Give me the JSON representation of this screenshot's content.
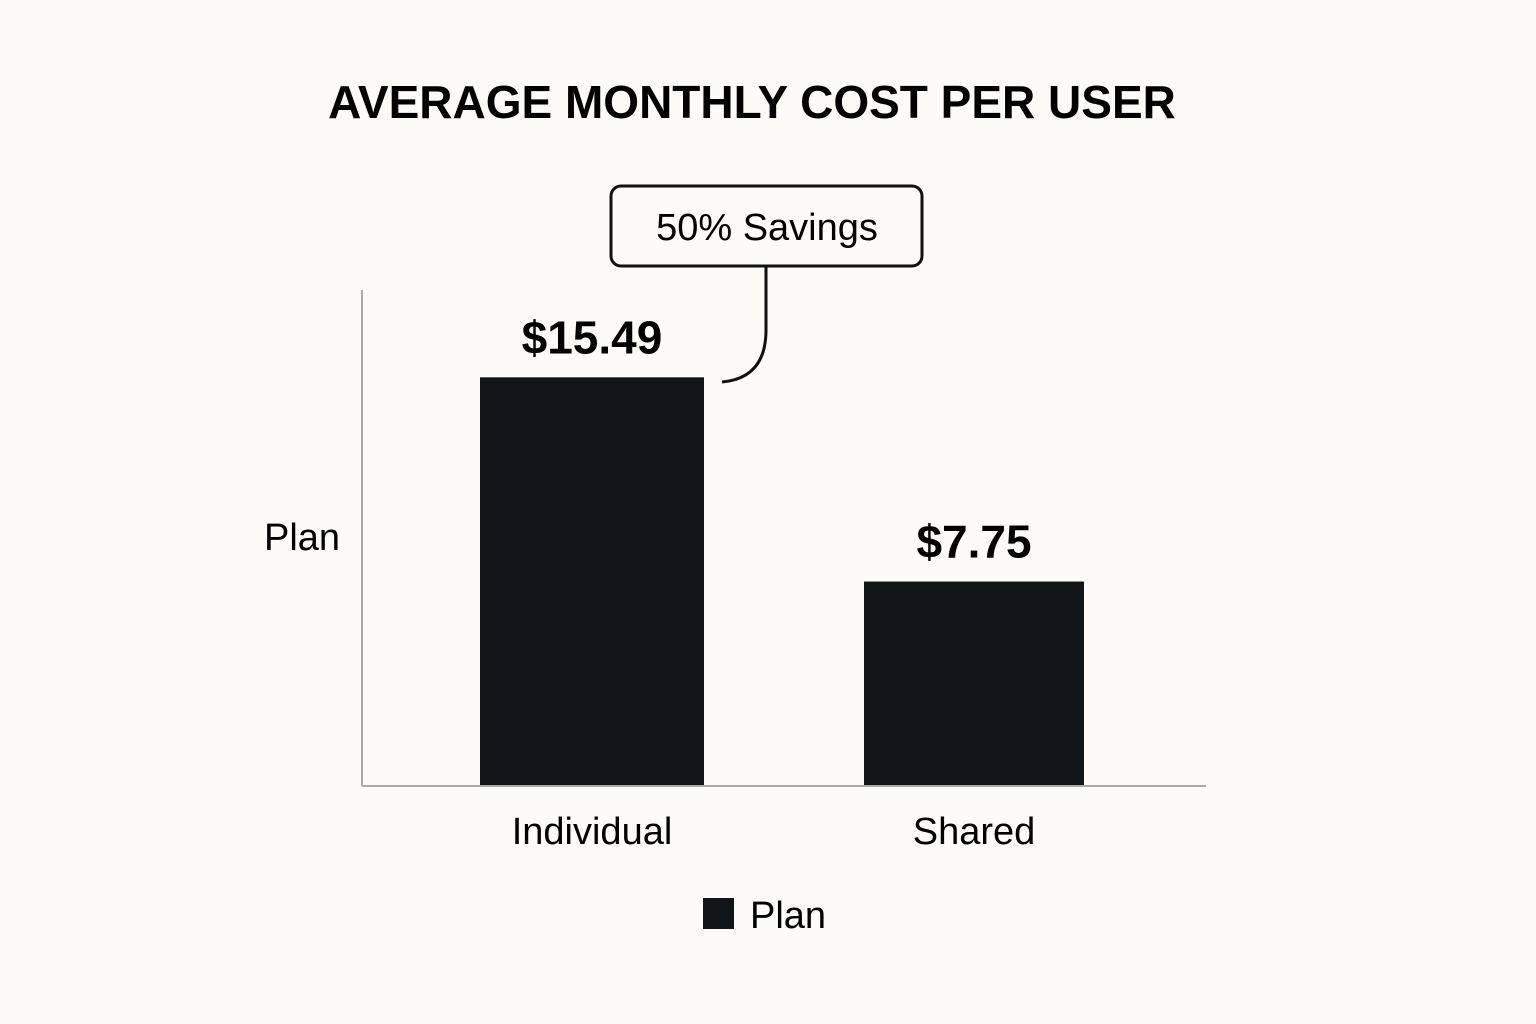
{
  "chart_data": {
    "type": "bar",
    "title": "AVERAGE MONTHLY COST PER USER",
    "xlabel": "",
    "ylabel": "Plan",
    "categories": [
      "Individual",
      "Shared"
    ],
    "series": [
      {
        "name": "Plan",
        "values": [
          15.49,
          7.75
        ]
      }
    ],
    "value_labels": [
      "$15.49",
      "$7.75"
    ],
    "ylim": [
      0,
      18.8
    ],
    "grid": false,
    "legend": {
      "placement": "bottom-center",
      "entries": [
        "Plan"
      ]
    },
    "annotations": [
      {
        "text": "50% Savings",
        "target_category": "Individual"
      }
    ]
  },
  "colors": {
    "background": "#fcfbf7",
    "bar": "#121517",
    "axis": "#aaaaaa",
    "text": "#111111",
    "callout_border": "#111111"
  }
}
